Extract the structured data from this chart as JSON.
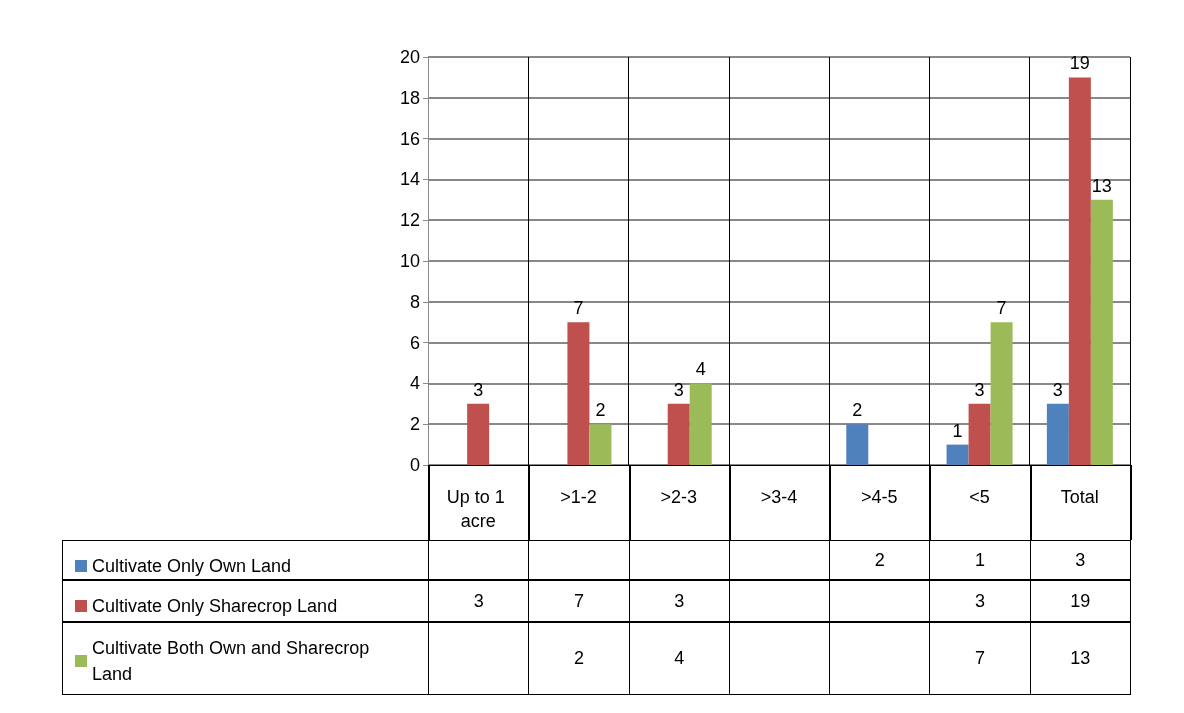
{
  "chart_data": {
    "type": "bar",
    "categories": [
      "Up to 1 acre",
      ">1-2",
      ">2-3",
      ">3-4",
      ">4-5",
      "<5",
      "Total"
    ],
    "series": [
      {
        "name": "Cultivate Only Own Land",
        "color": "#4f81bd",
        "values": [
          null,
          null,
          null,
          null,
          2,
          1,
          3
        ],
        "value_labels": [
          null,
          null,
          null,
          null,
          "2",
          "1",
          "3"
        ]
      },
      {
        "name": "Cultivate Only Sharecrop Land",
        "color": "#c0504d",
        "values": [
          3,
          7,
          3,
          null,
          null,
          3,
          19
        ],
        "value_labels": [
          "3",
          "7",
          "3",
          null,
          null,
          "3",
          "19"
        ]
      },
      {
        "name": "Cultivate Both Own and Sharecrop Land",
        "color": "#9bbb59",
        "values": [
          null,
          2,
          4,
          null,
          null,
          7,
          13
        ],
        "value_labels": [
          null,
          "2",
          "4",
          null,
          null,
          "7",
          "13"
        ]
      }
    ],
    "ylim": [
      0,
      20
    ],
    "yticks": [
      0,
      2,
      4,
      6,
      8,
      10,
      12,
      14,
      16,
      18,
      20
    ],
    "grid": "y",
    "legend": "bottom left",
    "data_labels": true
  }
}
